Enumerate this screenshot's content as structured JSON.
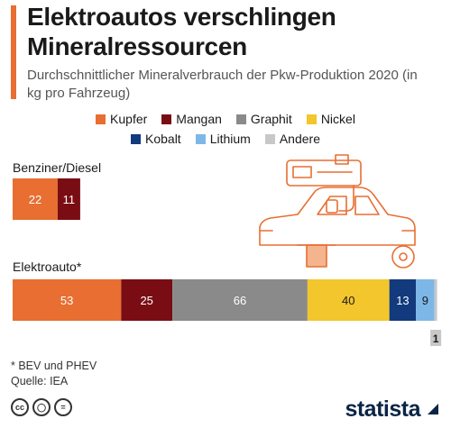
{
  "header": {
    "title": "Elektroautos verschlingen Mineralressourcen",
    "subtitle": "Durchschnittlicher Mineralverbrauch der Pkw-Produktion 2020 (in kg pro Fahrzeug)"
  },
  "legend": [
    {
      "name": "Kupfer",
      "color": "#e86e32"
    },
    {
      "name": "Mangan",
      "color": "#7a0d14"
    },
    {
      "name": "Graphit",
      "color": "#8a8a8a"
    },
    {
      "name": "Nickel",
      "color": "#f2c62c"
    },
    {
      "name": "Kobalt",
      "color": "#123a7c"
    },
    {
      "name": "Lithium",
      "color": "#7db7e8"
    },
    {
      "name": "Andere",
      "color": "#c8c8c8"
    }
  ],
  "chart_data": {
    "type": "bar",
    "orientation": "horizontal",
    "stacked": true,
    "title": "Elektroautos verschlingen Mineralressourcen",
    "subtitle": "Durchschnittlicher Mineralverbrauch der Pkw-Produktion 2020 (in kg pro Fahrzeug)",
    "categories": [
      "Benziner/Diesel",
      "Elektroauto*"
    ],
    "series": [
      {
        "name": "Kupfer",
        "values": [
          22,
          53
        ]
      },
      {
        "name": "Mangan",
        "values": [
          11,
          25
        ]
      },
      {
        "name": "Graphit",
        "values": [
          0,
          66
        ]
      },
      {
        "name": "Nickel",
        "values": [
          0,
          40
        ]
      },
      {
        "name": "Kobalt",
        "values": [
          0,
          13
        ]
      },
      {
        "name": "Lithium",
        "values": [
          0,
          9
        ]
      },
      {
        "name": "Andere",
        "values": [
          0,
          1
        ]
      }
    ],
    "legend_position": "top"
  },
  "footer": {
    "note": "* BEV und PHEV",
    "source": "Quelle: IEA",
    "brand": "statista",
    "license_icons": [
      "cc",
      "by",
      "nd"
    ]
  }
}
